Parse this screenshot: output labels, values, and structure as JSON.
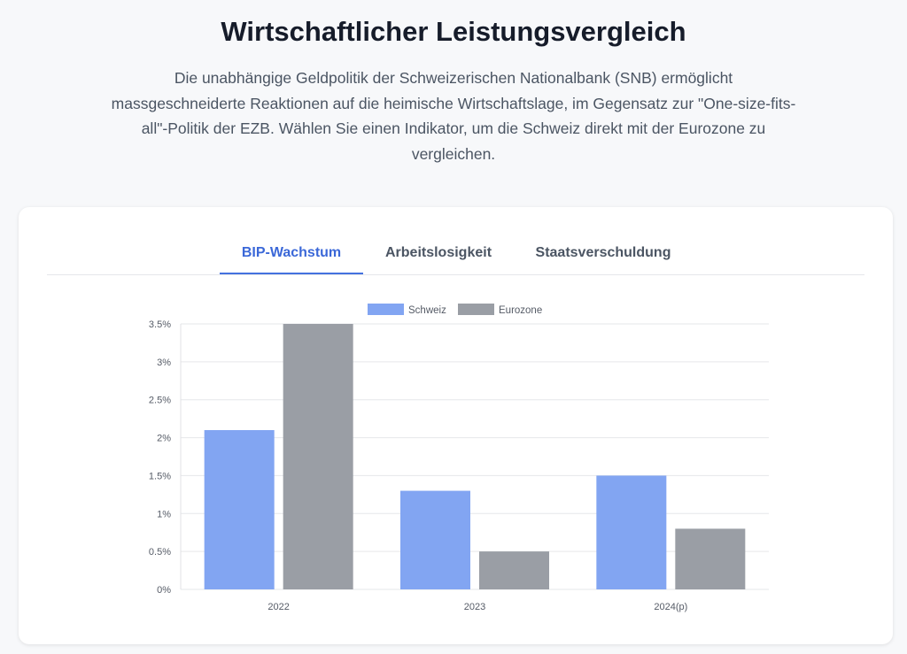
{
  "header": {
    "title": "Wirtschaftlicher Leistungsvergleich",
    "intro": "Die unabhängige Geldpolitik der Schweizerischen Nationalbank (SNB) ermöglicht massgeschneiderte Reaktionen auf die heimische Wirtschaftslage, im Gegensatz zur \"One-size-fits-all\"-Politik der EZB. Wählen Sie einen Indikator, um die Schweiz direkt mit der Eurozone zu vergleichen."
  },
  "tabs": [
    {
      "label": "BIP-Wachstum",
      "active": true
    },
    {
      "label": "Arbeitslosigkeit",
      "active": false
    },
    {
      "label": "Staatsverschuldung",
      "active": false
    }
  ],
  "chart_data": {
    "type": "bar",
    "categories": [
      "2022",
      "2023",
      "2024(p)"
    ],
    "series": [
      {
        "name": "Schweiz",
        "values": [
          2.1,
          1.3,
          1.5
        ],
        "color": "#82a5f2"
      },
      {
        "name": "Eurozone",
        "values": [
          3.5,
          0.5,
          0.8
        ],
        "color": "#9a9ea5"
      }
    ],
    "ylim": [
      0,
      3.5
    ],
    "yticks": [
      0,
      0.5,
      1,
      1.5,
      2,
      2.5,
      3,
      3.5
    ],
    "ytick_labels": [
      "0%",
      "0.5%",
      "1%",
      "1.5%",
      "2%",
      "2.5%",
      "3%",
      "3.5%"
    ],
    "legend": "top-center",
    "grid": true,
    "title": "",
    "xlabel": "",
    "ylabel": ""
  }
}
